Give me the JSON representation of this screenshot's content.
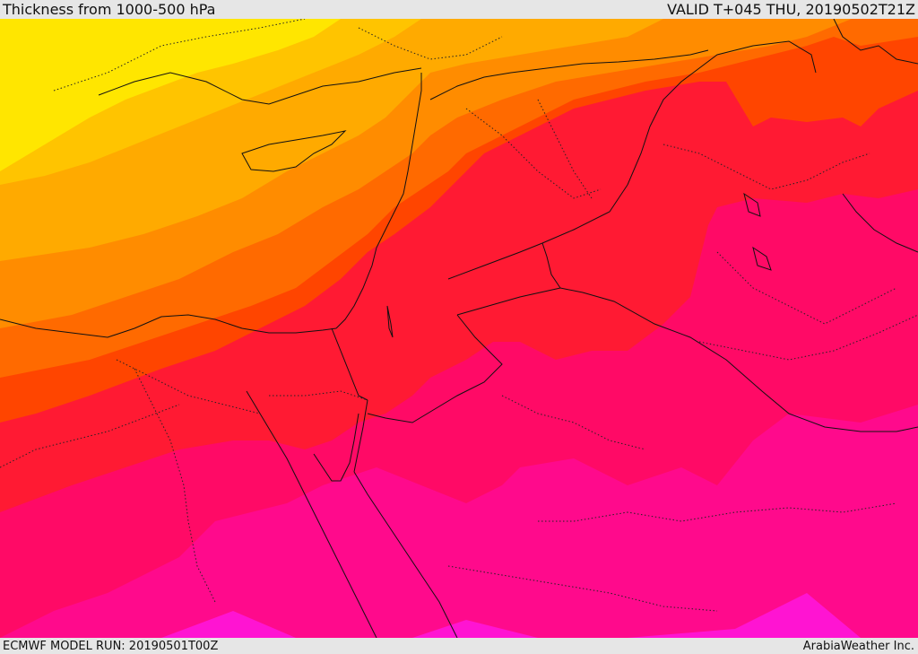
{
  "header": {
    "title": "Thickness from 1000-500 hPa",
    "valid": "VALID T+045 THU, 20190502T21Z"
  },
  "footer": {
    "model_run": "ECMWF MODEL RUN: 20190501T00Z",
    "credit": "ArabiaWeather Inc."
  },
  "map": {
    "field": "1000-500 hPa thickness",
    "palette": [
      "#ffe600",
      "#ffc400",
      "#ffaa00",
      "#ff8c00",
      "#ff6a00",
      "#ff4500",
      "#ff1a33",
      "#ff0a66",
      "#ff0a8c",
      "#ff14d2"
    ]
  }
}
